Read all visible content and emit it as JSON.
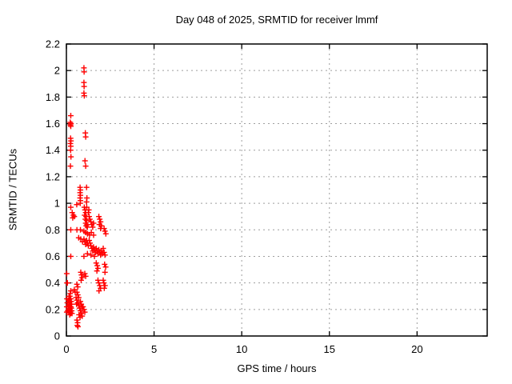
{
  "figure": {
    "title": "Day 048 of 2025, SRMTID for receiver lmmf",
    "xlabel": "GPS time / hours",
    "ylabel": "SRMTID / TECUs"
  },
  "colors": {
    "marker": "#ff0000",
    "axis": "#000000",
    "grid": "#9e9e9e",
    "background": "#ffffff"
  },
  "chart_data": {
    "type": "scatter",
    "title": "Day 048 of 2025, SRMTID for receiver lmmf",
    "xlabel": "GPS time / hours",
    "ylabel": "SRMTID / TECUs",
    "xlim": [
      0,
      24
    ],
    "ylim": [
      0,
      2.2
    ],
    "x_ticks": [
      0,
      5,
      10,
      15,
      20
    ],
    "x_tick_labels": [
      "0",
      "5",
      "10",
      "15",
      "20"
    ],
    "y_ticks": [
      0,
      0.2,
      0.4,
      0.6,
      0.8,
      1.0,
      1.2,
      1.4,
      1.6,
      1.8,
      2.0,
      2.2
    ],
    "y_tick_labels": [
      "0",
      "0.2",
      "0.4",
      "0.6",
      "0.8",
      "1",
      "1.2",
      "1.4",
      "1.6",
      "1.8",
      "2",
      "2.2"
    ],
    "grid": true,
    "legend": "none",
    "marker": "plus",
    "series": [
      {
        "name": "SRMTID",
        "color": "#ff0000",
        "points": [
          [
            1.0,
            2.02
          ],
          [
            1.01,
            1.99
          ],
          [
            1.0,
            1.91
          ],
          [
            1.01,
            1.88
          ],
          [
            1.0,
            1.83
          ],
          [
            1.02,
            1.81
          ],
          [
            0.25,
            1.66
          ],
          [
            0.22,
            1.61
          ],
          [
            0.26,
            1.6
          ],
          [
            0.23,
            1.59
          ],
          [
            0.25,
            1.58
          ],
          [
            0.24,
            1.49
          ],
          [
            0.26,
            1.47
          ],
          [
            0.23,
            1.45
          ],
          [
            0.25,
            1.43
          ],
          [
            0.24,
            1.4
          ],
          [
            0.26,
            1.35
          ],
          [
            0.23,
            1.28
          ],
          [
            1.08,
            1.53
          ],
          [
            1.1,
            1.5
          ],
          [
            1.06,
            1.32
          ],
          [
            1.1,
            1.28
          ],
          [
            0.78,
            1.12
          ],
          [
            0.8,
            1.1
          ],
          [
            0.78,
            1.08
          ],
          [
            0.8,
            1.06
          ],
          [
            0.78,
            1.04
          ],
          [
            0.8,
            1.02
          ],
          [
            0.79,
            1.0
          ],
          [
            1.15,
            1.12
          ],
          [
            1.17,
            1.04
          ],
          [
            1.15,
            1.01
          ],
          [
            1.16,
            0.97
          ],
          [
            0.59,
            0.99
          ],
          [
            0.25,
            0.97
          ],
          [
            0.33,
            0.93
          ],
          [
            0.4,
            0.91
          ],
          [
            0.36,
            0.89
          ],
          [
            0.45,
            0.9
          ],
          [
            1.02,
            0.97
          ],
          [
            1.06,
            0.95
          ],
          [
            1.1,
            0.93
          ],
          [
            1.04,
            0.91
          ],
          [
            1.12,
            0.9
          ],
          [
            1.08,
            0.88
          ],
          [
            1.15,
            0.87
          ],
          [
            1.1,
            0.85
          ],
          [
            1.18,
            0.84
          ],
          [
            1.13,
            0.83
          ],
          [
            1.2,
            0.82
          ],
          [
            1.25,
            0.93
          ],
          [
            1.28,
            0.95
          ],
          [
            1.3,
            0.9
          ],
          [
            1.34,
            0.88
          ],
          [
            1.4,
            0.86
          ],
          [
            1.44,
            0.84
          ],
          [
            1.5,
            0.82
          ],
          [
            1.55,
            0.85
          ],
          [
            1.85,
            0.9
          ],
          [
            1.9,
            0.88
          ],
          [
            1.95,
            0.86
          ],
          [
            1.88,
            0.84
          ],
          [
            2.0,
            0.83
          ],
          [
            1.95,
            0.81
          ],
          [
            0.25,
            0.8
          ],
          [
            0.6,
            0.8
          ],
          [
            0.8,
            0.8
          ],
          [
            1.0,
            0.79
          ],
          [
            1.1,
            0.78
          ],
          [
            1.2,
            0.77
          ],
          [
            1.32,
            0.76
          ],
          [
            1.42,
            0.78
          ],
          [
            1.55,
            0.76
          ],
          [
            2.15,
            0.81
          ],
          [
            2.2,
            0.79
          ],
          [
            2.25,
            0.77
          ],
          [
            0.7,
            0.74
          ],
          [
            0.82,
            0.73
          ],
          [
            0.92,
            0.71
          ],
          [
            1.0,
            0.73
          ],
          [
            1.05,
            0.71
          ],
          [
            1.1,
            0.69
          ],
          [
            1.15,
            0.72
          ],
          [
            1.2,
            0.7
          ],
          [
            1.25,
            0.68
          ],
          [
            1.3,
            0.72
          ],
          [
            1.35,
            0.7
          ],
          [
            1.4,
            0.68
          ],
          [
            1.45,
            0.66
          ],
          [
            1.5,
            0.64
          ],
          [
            1.55,
            0.67
          ],
          [
            1.6,
            0.65
          ],
          [
            1.65,
            0.63
          ],
          [
            1.7,
            0.66
          ],
          [
            1.75,
            0.64
          ],
          [
            1.8,
            0.62
          ],
          [
            1.85,
            0.65
          ],
          [
            1.9,
            0.63
          ],
          [
            1.95,
            0.61
          ],
          [
            2.0,
            0.64
          ],
          [
            2.05,
            0.62
          ],
          [
            2.1,
            0.66
          ],
          [
            2.15,
            0.63
          ],
          [
            2.2,
            0.61
          ],
          [
            0.25,
            0.6
          ],
          [
            1.0,
            0.6
          ],
          [
            1.2,
            0.62
          ],
          [
            1.4,
            0.61
          ],
          [
            1.6,
            0.6
          ],
          [
            0.02,
            0.47
          ],
          [
            1.7,
            0.55
          ],
          [
            1.76,
            0.53
          ],
          [
            1.8,
            0.51
          ],
          [
            1.74,
            0.49
          ],
          [
            2.18,
            0.54
          ],
          [
            2.24,
            0.52
          ],
          [
            2.2,
            0.48
          ],
          [
            0.82,
            0.48
          ],
          [
            0.86,
            0.46
          ],
          [
            0.9,
            0.44
          ],
          [
            0.84,
            0.42
          ],
          [
            1.05,
            0.47
          ],
          [
            1.1,
            0.45
          ],
          [
            0.03,
            0.4
          ],
          [
            0.06,
            0.4
          ],
          [
            1.8,
            0.42
          ],
          [
            1.85,
            0.4
          ],
          [
            1.9,
            0.38
          ],
          [
            1.95,
            0.36
          ],
          [
            1.86,
            0.34
          ],
          [
            2.1,
            0.42
          ],
          [
            2.14,
            0.4
          ],
          [
            2.2,
            0.38
          ],
          [
            2.16,
            0.36
          ],
          [
            0.6,
            0.39
          ],
          [
            0.65,
            0.37
          ],
          [
            0.15,
            0.3
          ],
          [
            0.18,
            0.28
          ],
          [
            0.2,
            0.26
          ],
          [
            0.22,
            0.24
          ],
          [
            0.25,
            0.22
          ],
          [
            0.18,
            0.22
          ],
          [
            0.2,
            0.2
          ],
          [
            0.23,
            0.18
          ],
          [
            0.25,
            0.17
          ],
          [
            0.15,
            0.25
          ],
          [
            0.17,
            0.23
          ],
          [
            0.2,
            0.3
          ],
          [
            0.25,
            0.28
          ],
          [
            0.28,
            0.26
          ],
          [
            0.3,
            0.24
          ],
          [
            0.28,
            0.21
          ],
          [
            0.3,
            0.19
          ],
          [
            0.32,
            0.17
          ],
          [
            0.22,
            0.32
          ],
          [
            0.25,
            0.34
          ],
          [
            0.12,
            0.27
          ],
          [
            0.1,
            0.22
          ],
          [
            0.08,
            0.19
          ],
          [
            0.05,
            0.25
          ],
          [
            0.03,
            0.28
          ],
          [
            0.02,
            0.22
          ],
          [
            0.02,
            0.18
          ],
          [
            0.13,
            0.2
          ],
          [
            0.16,
            0.18
          ],
          [
            0.19,
            0.16
          ],
          [
            0.45,
            0.35
          ],
          [
            0.5,
            0.33
          ],
          [
            0.6,
            0.33
          ],
          [
            0.65,
            0.31
          ],
          [
            0.7,
            0.29
          ],
          [
            0.6,
            0.27
          ],
          [
            0.65,
            0.25
          ],
          [
            0.7,
            0.23
          ],
          [
            0.75,
            0.21
          ],
          [
            0.8,
            0.26
          ],
          [
            0.85,
            0.24
          ],
          [
            0.9,
            0.22
          ],
          [
            0.8,
            0.19
          ],
          [
            0.85,
            0.17
          ],
          [
            0.9,
            0.15
          ],
          [
            0.95,
            0.22
          ],
          [
            1.0,
            0.2
          ],
          [
            1.05,
            0.18
          ],
          [
            0.55,
            0.29
          ],
          [
            0.58,
            0.24
          ],
          [
            0.72,
            0.16
          ],
          [
            0.78,
            0.14
          ],
          [
            0.6,
            0.12
          ],
          [
            0.64,
            0.1
          ],
          [
            0.62,
            0.08
          ],
          [
            0.66,
            0.07
          ]
        ]
      }
    ]
  }
}
